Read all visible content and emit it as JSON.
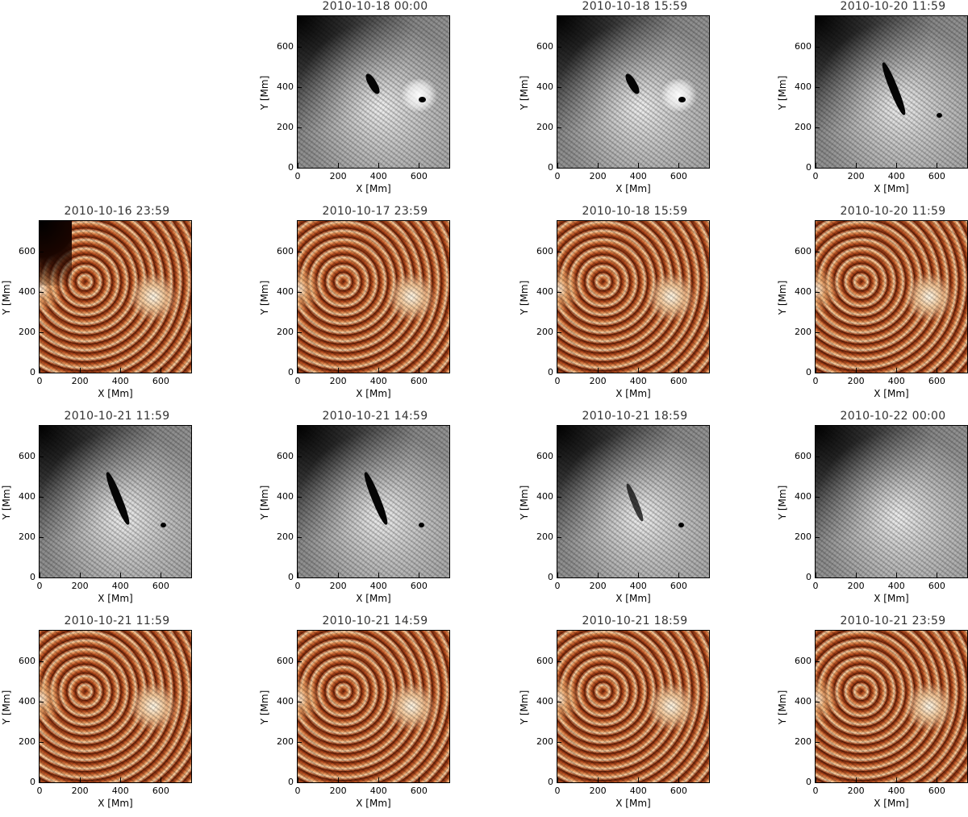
{
  "axes": {
    "x_label": "X [Mm]",
    "y_label": "Y [Mm]",
    "x_ticks": [
      "0",
      "200",
      "400",
      "600"
    ],
    "y_ticks": [
      "0",
      "200",
      "400",
      "600"
    ],
    "x_tick_values": [
      0,
      200,
      400,
      600
    ],
    "y_tick_values": [
      0,
      200,
      400,
      600
    ],
    "range": [
      0,
      750
    ]
  },
  "colormaps": {
    "gray": "grayscale",
    "hot": "heat-orange"
  },
  "rows": [
    {
      "cmap": "gray",
      "panels": [
        {
          "blank": true
        },
        {
          "title": "2010-10-18 00:00",
          "features": "filament-small"
        },
        {
          "title": "2010-10-18 15:59",
          "features": "filament-small"
        },
        {
          "title": "2010-10-20 11:59",
          "features": "filament-long"
        }
      ]
    },
    {
      "cmap": "hot",
      "panels": [
        {
          "title": "2010-10-16 23:59",
          "features": "limb"
        },
        {
          "title": "2010-10-17 23:59"
        },
        {
          "title": "2010-10-18 15:59"
        },
        {
          "title": "2010-10-20 11:59"
        }
      ]
    },
    {
      "cmap": "gray",
      "panels": [
        {
          "title": "2010-10-21 11:59",
          "features": "filament-long"
        },
        {
          "title": "2010-10-21 14:59",
          "features": "filament-long"
        },
        {
          "title": "2010-10-21 18:59",
          "features": "filament-fading"
        },
        {
          "title": "2010-10-22 00:00",
          "features": "none"
        }
      ]
    },
    {
      "cmap": "hot",
      "panels": [
        {
          "title": "2010-10-21 11:59"
        },
        {
          "title": "2010-10-21 14:59"
        },
        {
          "title": "2010-10-21 18:59"
        },
        {
          "title": "2010-10-21 23:59"
        }
      ]
    }
  ]
}
